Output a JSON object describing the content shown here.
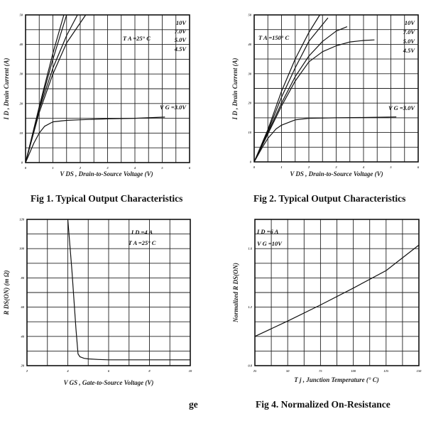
{
  "chart_data": [
    {
      "type": "line",
      "title": "Fig 1. Typical Output Characteristics",
      "xlabel": "V DS , Drain-to-Source Voltage (V)",
      "ylabel": "I D , Drain Current (A)",
      "xlim": [
        0,
        6
      ],
      "ylim": [
        0,
        50
      ],
      "xticks": [
        0,
        1,
        2,
        3,
        4,
        5,
        6
      ],
      "yticks": [
        0,
        10,
        20,
        30,
        40,
        50
      ],
      "xgrid_step": 0.5,
      "ygrid_step": 5,
      "grid": true,
      "annotations": [
        "T A =25° C",
        "10V",
        "7.0V",
        "5.0V",
        "4.5V",
        "V G =3.0V"
      ],
      "series": [
        {
          "name": "10V",
          "x": [
            0,
            0.5,
            1.0,
            1.4
          ],
          "y": [
            0,
            19,
            37,
            50
          ]
        },
        {
          "name": "7.0V",
          "x": [
            0,
            0.5,
            1.0,
            1.5
          ],
          "y": [
            0,
            18.5,
            35,
            50
          ]
        },
        {
          "name": "5.0V",
          "x": [
            0,
            0.5,
            1.0,
            1.5,
            1.9
          ],
          "y": [
            0,
            18,
            32,
            43,
            50
          ]
        },
        {
          "name": "4.5V",
          "x": [
            0,
            0.5,
            1.0,
            1.5,
            2.2
          ],
          "y": [
            0,
            17,
            30,
            40.5,
            50
          ]
        },
        {
          "name": "V G =3.0V",
          "x": [
            0,
            0.3,
            0.5,
            0.7,
            1.0,
            1.5,
            2.0,
            3.0,
            4.0,
            5.1
          ],
          "y": [
            0,
            6.5,
            10,
            12.3,
            13.8,
            14.3,
            14.5,
            14.8,
            15.0,
            15.4
          ]
        }
      ]
    },
    {
      "type": "line",
      "title": "Fig 2. Typical Output Characteristics",
      "xlabel": "V DS , Drain-to-Source Voltage (V)",
      "ylabel": "I D , Drain Current (A)",
      "xlim": [
        0,
        6
      ],
      "ylim": [
        0,
        50
      ],
      "xticks": [
        0,
        1,
        2,
        3,
        4,
        5,
        6
      ],
      "yticks": [
        0,
        10,
        20,
        30,
        40,
        50
      ],
      "xgrid_step": 0.5,
      "ygrid_step": 5,
      "grid": true,
      "annotations": [
        "T A =150° C",
        "10V",
        "7.0V",
        "5.0V",
        "4.5V",
        "V G =3.0V"
      ],
      "series": [
        {
          "name": "10V",
          "x": [
            0,
            0.5,
            1.0,
            1.5,
            2.0,
            2.4
          ],
          "y": [
            0,
            11,
            24,
            35,
            44,
            50
          ]
        },
        {
          "name": "7.0V",
          "x": [
            0,
            0.5,
            1.0,
            1.5,
            2.0,
            2.7
          ],
          "y": [
            0,
            10.5,
            22,
            32,
            41,
            49
          ]
        },
        {
          "name": "5.0V",
          "x": [
            0,
            0.5,
            1.0,
            1.5,
            2.0,
            2.5,
            3.0,
            3.4
          ],
          "y": [
            0,
            10,
            20,
            29,
            36,
            41,
            44.5,
            46
          ]
        },
        {
          "name": "4.5V",
          "x": [
            0,
            0.5,
            1.0,
            1.5,
            2.0,
            2.5,
            3.0,
            3.5,
            4.0,
            4.4
          ],
          "y": [
            0,
            9.5,
            19,
            27.5,
            34,
            37.5,
            39.5,
            40.8,
            41.3,
            41.5
          ]
        },
        {
          "name": "V G =3.0V",
          "x": [
            0,
            0.3,
            0.5,
            0.8,
            1.0,
            1.5,
            2.0,
            3.0,
            4.0,
            5.2
          ],
          "y": [
            0,
            5,
            8,
            11.2,
            12.5,
            14.3,
            14.8,
            15.0,
            15.1,
            15.3
          ]
        }
      ]
    },
    {
      "type": "line",
      "title": "",
      "xlabel": "V GS , Gate-to-Source Voltage (V)",
      "ylabel": "R DS(ON) (m Ω)",
      "xlim": [
        2,
        10
      ],
      "ylim": [
        20,
        120
      ],
      "xticks": [
        2,
        4,
        6,
        8,
        10
      ],
      "yticks": [
        20,
        40,
        60,
        80,
        100,
        120
      ],
      "xgrid_step": 1,
      "ygrid_step": 10,
      "grid": true,
      "annotations": [
        "I D =4 A",
        "T A =25° C"
      ],
      "series": [
        {
          "x": [
            4.0,
            4.2,
            4.4,
            4.5,
            4.6,
            4.8,
            5.0,
            5.5,
            6.0,
            8.0,
            10.0
          ],
          "y": [
            120,
            85,
            45,
            28,
            26,
            25,
            24.6,
            24.2,
            24,
            24,
            24
          ]
        }
      ]
    },
    {
      "type": "line",
      "title": "Fig 4. Normalized On-Resistance",
      "xlabel": "T j , Junction Temperature (° C)",
      "ylabel": "Normalized R DS(ON)",
      "xlim": [
        25,
        150
      ],
      "ylim": [
        0.8,
        1.8
      ],
      "xticks": [
        25,
        50,
        75,
        100,
        125,
        150
      ],
      "yticks": [
        0.8,
        1.2,
        1.6
      ],
      "xgrid_step": 12.5,
      "ygrid_step": 0.1,
      "grid": true,
      "annotations": [
        "I D =6 A",
        "V G =10V"
      ],
      "series": [
        {
          "x": [
            25,
            50,
            75,
            100,
            125,
            150
          ],
          "y": [
            1.0,
            1.105,
            1.215,
            1.33,
            1.45,
            1.625
          ]
        }
      ]
    }
  ],
  "fragments": {
    "partial_caption": "ge"
  }
}
